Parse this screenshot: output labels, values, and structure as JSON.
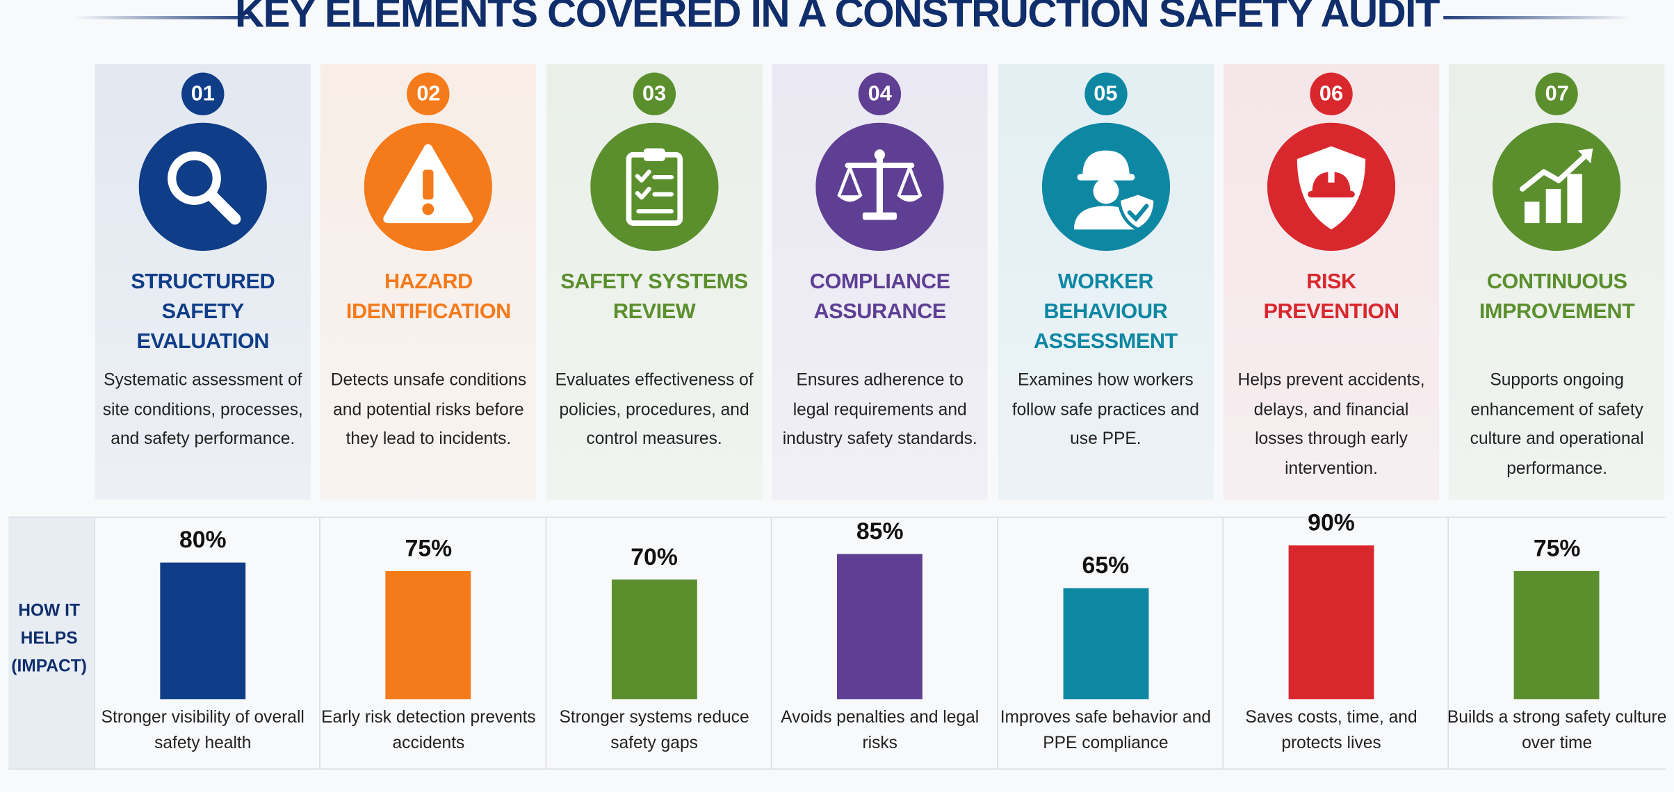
{
  "header": {
    "title": "KEY ELEMENTS COVERED IN A CONSTRUCTION SAFETY AUDIT"
  },
  "row_label": "HOW IT HELPS (IMPACT)",
  "columns": [
    {
      "number": "01",
      "title": [
        "STRUCTURED",
        "SAFETY",
        "EVALUATION"
      ],
      "description": "Systematic assessment of site conditions, processes, and safety performance.",
      "impact": "Stronger visibility of overall safety health"
    },
    {
      "number": "02",
      "title": [
        "HAZARD",
        "IDENTIFICATION"
      ],
      "description": "Detects unsafe conditions and potential risks before they lead to incidents.",
      "impact": "Early risk detection prevents accidents"
    },
    {
      "number": "03",
      "title": [
        "SAFETY SYSTEMS",
        "REVIEW"
      ],
      "description": "Evaluates effectiveness of policies, procedures, and control measures.",
      "impact": "Stronger systems reduce safety gaps"
    },
    {
      "number": "04",
      "title": [
        "COMPLIANCE",
        "ASSURANCE"
      ],
      "description": "Ensures adherence to legal requirements and industry safety standards.",
      "impact": "Avoids penalties and legal risks"
    },
    {
      "number": "05",
      "title": [
        "WORKER BEHAVIOUR",
        "ASSESSMENT"
      ],
      "description": "Examines how workers follow safe practices and use PPE.",
      "impact": "Improves safe behavior and PPE compliance"
    },
    {
      "number": "06",
      "title": [
        "RISK",
        "PREVENTION"
      ],
      "description": "Helps prevent accidents, delays, and financial losses through early intervention.",
      "impact": "Saves costs, time, and protects lives"
    },
    {
      "number": "07",
      "title": [
        "CONTINUOUS",
        "IMPROVEMENT"
      ],
      "description": "Supports ongoing enhancement of safety culture and operational performance.",
      "impact": "Builds a strong safety culture over time"
    }
  ],
  "chart_data": {
    "type": "bar",
    "values": [
      80,
      75,
      70,
      85,
      65,
      90,
      75
    ],
    "value_labels": [
      "80%",
      "75%",
      "70%",
      "85%",
      "65%",
      "90%",
      "75%"
    ],
    "colors": [
      "#0f3d87",
      "#f47a1a",
      "#5b8f2e",
      "#5e3f94",
      "#0e87a3",
      "#d9282d",
      "#5b8f2e"
    ],
    "ylim": [
      0,
      100
    ]
  }
}
